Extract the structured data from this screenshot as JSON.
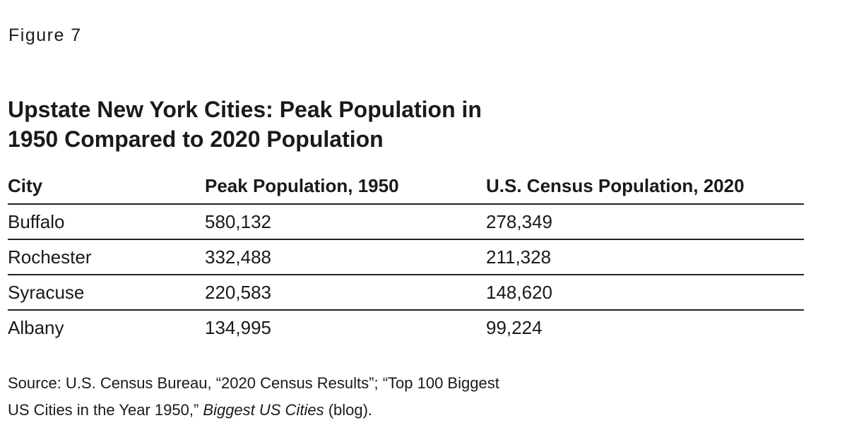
{
  "figure_label": "Figure 7",
  "title_line1": "Upstate New York Cities: Peak Population in",
  "title_line2": "1950 Compared to 2020 Population",
  "table": {
    "headers": [
      "City",
      "Peak Population, 1950",
      "U.S. Census Population, 2020"
    ],
    "rows": [
      [
        "Buffalo",
        "580,132",
        "278,349"
      ],
      [
        "Rochester",
        "332,488",
        "211,328"
      ],
      [
        "Syracuse",
        "220,583",
        "148,620"
      ],
      [
        "Albany",
        "134,995",
        "99,224"
      ]
    ]
  },
  "source": {
    "line1": "Source: U.S. Census Bureau, “2020 Census Results”; “Top 100 Biggest",
    "line2_pre": "US Cities in the Year 1950,” ",
    "line2_italic": "Biggest US Cities",
    "line2_post": " (blog)."
  }
}
